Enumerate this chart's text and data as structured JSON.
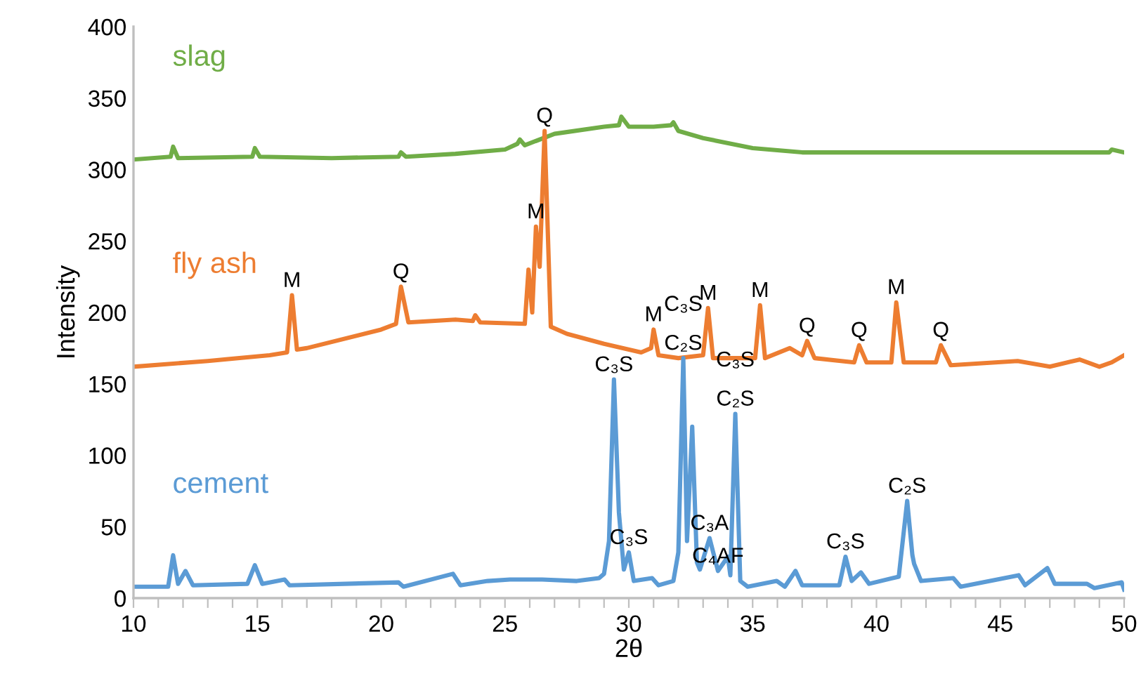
{
  "chart_data": {
    "type": "line",
    "xlabel": "2θ",
    "ylabel": "Intensity",
    "xlim": [
      10,
      50
    ],
    "ylim": [
      0,
      400
    ],
    "xticks": [
      10,
      {
        "value": 11,
        "label": null
      },
      {
        "value": 12,
        "label": null
      },
      {
        "value": 13,
        "label": null
      },
      {
        "value": 14,
        "label": null
      },
      15,
      {
        "value": 16,
        "label": null
      },
      {
        "value": 17,
        "label": null
      },
      {
        "value": 18,
        "label": null
      },
      {
        "value": 19,
        "label": null
      },
      20,
      {
        "value": 21,
        "label": null
      },
      {
        "value": 22,
        "label": null
      },
      {
        "value": 23,
        "label": null
      },
      {
        "value": 24,
        "label": null
      },
      25,
      {
        "value": 26,
        "label": null
      },
      {
        "value": 27,
        "label": null
      },
      {
        "value": 28,
        "label": null
      },
      {
        "value": 29,
        "label": null
      },
      30,
      {
        "value": 31,
        "label": null
      },
      {
        "value": 32,
        "label": null
      },
      {
        "value": 33,
        "label": null
      },
      {
        "value": 34,
        "label": null
      },
      35,
      {
        "value": 36,
        "label": null
      },
      {
        "value": 37,
        "label": null
      },
      {
        "value": 38,
        "label": null
      },
      {
        "value": 39,
        "label": null
      },
      40,
      {
        "value": 41,
        "label": null
      },
      {
        "value": 42,
        "label": null
      },
      {
        "value": 43,
        "label": null
      },
      {
        "value": 44,
        "label": null
      },
      45,
      {
        "value": 46,
        "label": null
      },
      {
        "value": 47,
        "label": null
      },
      {
        "value": 48,
        "label": null
      },
      {
        "value": 49,
        "label": null
      },
      50
    ],
    "yticks": [
      0,
      50,
      100,
      150,
      200,
      250,
      300,
      350,
      400
    ],
    "grid": false,
    "legend": false,
    "marker": "none",
    "line_style": "solid",
    "series": [
      {
        "name": "slag",
        "color": "#70ad47",
        "x": [
          10,
          11.5,
          11.6,
          11.8,
          14.8,
          14.9,
          15.1,
          18,
          20.7,
          20.8,
          21,
          23,
          25,
          25.5,
          25.6,
          25.8,
          27,
          29,
          29.6,
          29.7,
          30,
          31,
          31.7,
          31.8,
          32,
          33,
          35,
          37,
          40,
          45,
          49.4,
          49.5,
          50
        ],
        "values": [
          307,
          309,
          316,
          308,
          309,
          315,
          309,
          308,
          309,
          312,
          309,
          311,
          314,
          318,
          321,
          317,
          325,
          330,
          331,
          337,
          330,
          330,
          331,
          333,
          327,
          322,
          315,
          312,
          312,
          312,
          312,
          314,
          312
        ]
      },
      {
        "name": "fly ash",
        "color": "#ed7d31",
        "x": [
          10,
          13,
          15.5,
          16.2,
          16.4,
          16.6,
          17,
          20,
          20.6,
          20.8,
          21.1,
          23,
          23.7,
          23.8,
          24,
          25.8,
          25.95,
          26.1,
          26.25,
          26.4,
          26.6,
          26.85,
          27.5,
          29,
          30.5,
          30.9,
          31,
          31.2,
          32,
          33,
          33.2,
          33.4,
          35.1,
          35.3,
          35.5,
          36.5,
          37,
          37.2,
          37.5,
          39.1,
          39.3,
          39.6,
          40.6,
          40.8,
          41.1,
          42.4,
          42.6,
          43,
          45.7,
          47,
          48.2,
          49,
          49.5,
          50
        ],
        "values": [
          162,
          166,
          170,
          172,
          212,
          174,
          175,
          188,
          192,
          218,
          193,
          195,
          194,
          198,
          193,
          192,
          230,
          200,
          260,
          232,
          327,
          190,
          185,
          178,
          172,
          175,
          188,
          170,
          168,
          170,
          203,
          168,
          168,
          205,
          168,
          175,
          170,
          180,
          168,
          165,
          177,
          165,
          165,
          207,
          165,
          165,
          177,
          163,
          166,
          162,
          167,
          162,
          165,
          170
        ]
      },
      {
        "name": "cement",
        "color": "#5b9bd5",
        "x": [
          10,
          11.4,
          11.6,
          11.8,
          12.1,
          12.4,
          14.6,
          14.9,
          15.2,
          16.1,
          16.3,
          20.7,
          20.9,
          22.9,
          23.2,
          24.3,
          25.2,
          26.5,
          27.9,
          28.8,
          29.0,
          29.2,
          29.4,
          29.6,
          29.8,
          30.0,
          30.2,
          30.94,
          31.2,
          31.8,
          32.0,
          32.2,
          32.35,
          32.56,
          32.75,
          32.87,
          33.26,
          33.6,
          34.0,
          34.1,
          34.3,
          34.5,
          34.8,
          35.97,
          36.3,
          36.73,
          37,
          38.5,
          38.75,
          39.0,
          39.37,
          39.7,
          40.9,
          41.24,
          41.45,
          41.52,
          41.8,
          43.1,
          43.4,
          45.74,
          46.0,
          46.9,
          47.2,
          48.5,
          48.8,
          49.9,
          50
        ],
        "values": [
          8,
          8,
          30,
          10,
          19,
          9,
          10,
          23,
          10,
          13,
          9,
          11,
          8,
          17,
          9,
          12,
          13,
          13,
          12,
          14,
          17,
          40,
          153,
          60,
          20,
          32,
          12,
          14,
          9,
          12,
          32,
          168,
          40,
          120,
          25,
          20,
          42,
          19,
          29,
          16,
          129,
          12,
          8,
          12,
          8,
          19,
          9,
          9,
          29,
          12,
          18,
          10,
          15,
          68,
          30,
          24,
          12,
          14,
          8,
          16,
          9,
          21,
          10,
          10,
          7,
          11,
          6
        ]
      }
    ],
    "annotations": [
      {
        "text": "M",
        "x": 16.4,
        "y": 212
      },
      {
        "text": "Q",
        "x": 20.8,
        "y": 218
      },
      {
        "text": "M",
        "x": 26.25,
        "y": 260
      },
      {
        "text": "Q",
        "x": 26.6,
        "y": 327
      },
      {
        "text": "M",
        "x": 31,
        "y": 188
      },
      {
        "text": "M",
        "x": 33.2,
        "y": 203
      },
      {
        "text": "M",
        "x": 35.3,
        "y": 205
      },
      {
        "text": "Q",
        "x": 37.2,
        "y": 180
      },
      {
        "text": "Q",
        "x": 39.3,
        "y": 177
      },
      {
        "text": "M",
        "x": 40.8,
        "y": 207
      },
      {
        "text": "Q",
        "x": 42.6,
        "y": 177
      },
      {
        "text": "C₃S",
        "x": 29.4,
        "y": 153
      },
      {
        "text": "C₃S",
        "x": 30.0,
        "y": 32
      },
      {
        "text": "C₃S",
        "x": 32.2,
        "y": 168
      },
      {
        "text": "C₂S",
        "x": 32.2,
        "y": 168
      },
      {
        "text": "C₃S",
        "x": 34.3,
        "y": 129
      },
      {
        "text": "C₂S",
        "x": 34.3,
        "y": 129
      },
      {
        "text": "C₃A",
        "x": 33.26,
        "y": 42
      },
      {
        "text": "C₄AF",
        "x": 33.6,
        "y": 19
      },
      {
        "text": "C₃S",
        "x": 38.75,
        "y": 29
      },
      {
        "text": "C₂S",
        "x": 41.24,
        "y": 68
      }
    ]
  }
}
